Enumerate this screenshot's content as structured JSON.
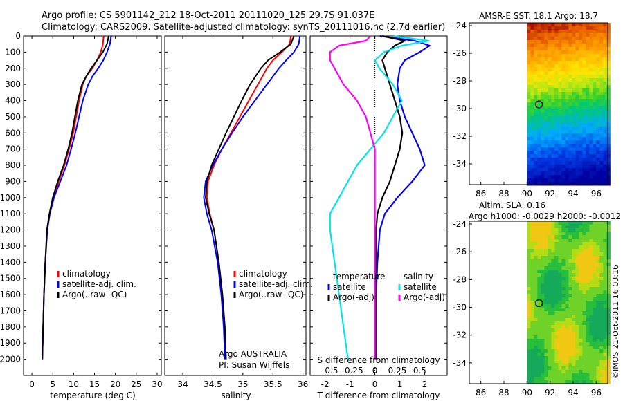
{
  "header": {
    "line1": "Argo profile: CS 5901142_212 18-Oct-2011 20111020_125 29.7S 91.037E",
    "line2": "Climatology: CARS2009. Satellite-adjusted climatology: synTS_20111016.nc (2.7d earlier)"
  },
  "colors": {
    "climatology": "#ff0000",
    "satellite": "#0000ff",
    "argo": "#000000",
    "sat_sal": "#00e5e5",
    "argo_sal": "#ff00ff"
  },
  "chart_data": [
    {
      "type": "line",
      "xlabel": "temperature (deg C)",
      "ylabel": "",
      "xlim": [
        -2,
        31
      ],
      "ylim": [
        2100,
        0
      ],
      "xticks": [
        "0",
        "5",
        "10",
        "15",
        "20",
        "25",
        "30"
      ],
      "yticks": [
        "0",
        "100",
        "200",
        "300",
        "400",
        "500",
        "600",
        "700",
        "800",
        "900",
        "1000",
        "1100",
        "1200",
        "1300",
        "1400",
        "1500",
        "1600",
        "1700",
        "1800",
        "1900",
        "2000"
      ],
      "legend": [
        "climatology",
        "satellite-adj. clim.",
        "Argo(..raw -QC)"
      ],
      "series": [
        {
          "name": "climatology",
          "color": "#ff0000",
          "depth": [
            0,
            50,
            100,
            150,
            200,
            250,
            300,
            400,
            500,
            600,
            700,
            800,
            900,
            1000,
            1100,
            1200,
            1400,
            1600,
            1800,
            2000
          ],
          "values": [
            17.2,
            17.0,
            16.5,
            15.6,
            14.5,
            13.0,
            12.2,
            11.3,
            10.6,
            9.9,
            8.9,
            7.8,
            6.4,
            5.1,
            4.2,
            3.6,
            3.2,
            2.9,
            2.7,
            2.5
          ]
        },
        {
          "name": "satellite-adj. clim.",
          "color": "#0000ff",
          "depth": [
            0,
            50,
            100,
            150,
            200,
            250,
            300,
            400,
            500,
            600,
            700,
            800,
            900,
            1000,
            1100,
            1200,
            1400,
            1600,
            1800,
            2000
          ],
          "values": [
            19.0,
            18.7,
            18.0,
            17.1,
            15.9,
            14.5,
            13.5,
            12.2,
            11.3,
            10.4,
            9.4,
            8.3,
            6.8,
            5.3,
            4.3,
            3.7,
            3.2,
            2.9,
            2.7,
            2.5
          ]
        },
        {
          "name": "Argo(..raw -QC)",
          "color": "#000000",
          "depth": [
            0,
            50,
            100,
            150,
            200,
            250,
            300,
            400,
            500,
            600,
            700,
            800,
            900,
            1000,
            1100,
            1200,
            1400,
            1600,
            1800,
            2000
          ],
          "values": [
            18.4,
            18.0,
            17.0,
            15.6,
            14.2,
            13.0,
            12.0,
            11.0,
            10.3,
            9.6,
            8.7,
            7.6,
            6.2,
            5.0,
            4.2,
            3.6,
            3.2,
            2.9,
            2.7,
            2.5
          ]
        }
      ]
    },
    {
      "type": "line",
      "xlabel": "salinity",
      "ylabel": "",
      "xlim": [
        33.7,
        36.05
      ],
      "ylim": [
        2100,
        0
      ],
      "xticks": [
        "34",
        "34.5",
        "35",
        "35.5",
        "36"
      ],
      "legend": [
        "climatology",
        "satellite-adj. clim.",
        "Argo(..raw -QC)"
      ],
      "annotation": [
        "Argo AUSTRALIA",
        "PI: Susan Wijffels"
      ],
      "series": [
        {
          "name": "climatology",
          "color": "#ff0000",
          "depth": [
            0,
            50,
            100,
            150,
            200,
            300,
            400,
            500,
            600,
            700,
            800,
            900,
            1000,
            1100,
            1200,
            1400,
            1600,
            1800,
            2000
          ],
          "values": [
            35.8,
            35.78,
            35.65,
            35.5,
            35.4,
            35.25,
            35.1,
            34.95,
            34.8,
            34.65,
            34.52,
            34.42,
            34.4,
            34.45,
            34.52,
            34.6,
            34.66,
            34.7,
            34.72
          ]
        },
        {
          "name": "satellite-adj. clim.",
          "color": "#0000ff",
          "depth": [
            0,
            50,
            100,
            150,
            200,
            300,
            400,
            500,
            600,
            700,
            800,
            900,
            1000,
            1100,
            1200,
            1400,
            1600,
            1800,
            2000
          ],
          "values": [
            35.95,
            35.93,
            35.85,
            35.72,
            35.6,
            35.4,
            35.2,
            35.0,
            34.82,
            34.65,
            34.5,
            34.38,
            34.35,
            34.4,
            34.48,
            34.58,
            34.64,
            34.68,
            34.7
          ]
        },
        {
          "name": "Argo(..raw -QC)",
          "color": "#000000",
          "depth": [
            0,
            50,
            100,
            150,
            200,
            300,
            400,
            500,
            600,
            700,
            800,
            900,
            1000,
            1100,
            1200,
            1400,
            1600,
            1800,
            2000
          ],
          "values": [
            35.85,
            35.8,
            35.62,
            35.42,
            35.3,
            35.12,
            34.98,
            34.85,
            34.72,
            34.6,
            34.48,
            34.4,
            34.38,
            34.44,
            34.52,
            34.6,
            34.66,
            34.7,
            34.72
          ]
        }
      ]
    },
    {
      "type": "line",
      "xlabel": "T difference from climatology",
      "top_label": "S difference from climatology",
      "xlim": [
        -2.6,
        2.9
      ],
      "ylim": [
        2100,
        0
      ],
      "xticks": [
        "-2",
        "-1",
        "0",
        "1",
        "2"
      ],
      "sticks": [
        "-0.5",
        "-0.25",
        "0",
        "0.25",
        "0.5"
      ],
      "legend_titles": [
        "temperature",
        "salinity"
      ],
      "legend": [
        "satellite",
        "Argo(-adj)",
        "satellite",
        "Argo(-adj)"
      ],
      "series": [
        {
          "name": "satellite",
          "color": "#0000ff",
          "depth": [
            0,
            30,
            60,
            100,
            150,
            200,
            300,
            400,
            500,
            600,
            700,
            800,
            900,
            1000,
            1100,
            1200,
            1400,
            1600,
            1800,
            2000
          ],
          "values": [
            0.2,
            1.6,
            2.2,
            1.8,
            1.2,
            1.0,
            0.9,
            1.0,
            1.2,
            1.5,
            1.8,
            2.0,
            1.5,
            0.9,
            0.4,
            0.2,
            0.1,
            0.05,
            0.05,
            0.05
          ]
        },
        {
          "name": "Argo(-adj)",
          "color": "#000000",
          "depth": [
            0,
            30,
            60,
            100,
            150,
            200,
            300,
            400,
            500,
            600,
            700,
            800,
            900,
            1000,
            1100,
            1200,
            1400,
            1600,
            1800,
            2000
          ],
          "values": [
            0.3,
            1.2,
            0.8,
            0.5,
            0.3,
            0.4,
            0.6,
            0.8,
            1.0,
            1.1,
            1.0,
            0.8,
            0.6,
            0.3,
            0.1,
            0.05,
            0.05,
            0.05,
            0.05,
            0.05
          ]
        },
        {
          "name": "satellite",
          "color": "#00e5e5",
          "depth": [
            0,
            30,
            60,
            100,
            150,
            200,
            300,
            400,
            500,
            600,
            700,
            800,
            900,
            1000,
            1100,
            1200,
            1400,
            1600,
            1800,
            2000
          ],
          "values": [
            0.2,
            0.6,
            0.3,
            0.1,
            0.0,
            0.05,
            0.2,
            0.3,
            0.2,
            0.1,
            -0.05,
            -0.2,
            -0.3,
            -0.4,
            -0.5,
            -0.5,
            -0.45,
            -0.4,
            -0.35,
            -0.3
          ]
        },
        {
          "name": "Argo(-adj)",
          "color": "#ff00ff",
          "depth": [
            0,
            30,
            60,
            100,
            150,
            200,
            300,
            400,
            500,
            600,
            700,
            800,
            900,
            1000,
            1100,
            1200,
            1400,
            1600,
            1800,
            2000
          ],
          "values": [
            -0.05,
            -0.1,
            -0.4,
            -0.5,
            -0.5,
            -0.45,
            -0.35,
            -0.2,
            -0.1,
            -0.05,
            0.0,
            0.0,
            0.0,
            0.0,
            0.0,
            0.0,
            0.0,
            0.0,
            0.0,
            0.0
          ]
        }
      ]
    },
    {
      "type": "heatmap",
      "title": "AMSR-E SST: 18.1  Argo: 18.7",
      "xlim": [
        85,
        97
      ],
      "ylim": [
        -35.5,
        -23.8
      ],
      "xticks": [
        "86",
        "88",
        "90",
        "92",
        "94",
        "96"
      ],
      "yticks": [
        "-24",
        "-26",
        "-28",
        "-30",
        "-32",
        "-34"
      ],
      "marker": {
        "lon": 91.04,
        "lat": -29.7
      }
    },
    {
      "type": "heatmap",
      "title": "Altim. SLA: 0.16",
      "subtitle": "Argo h1000: -0.0029 h2000: -0.0012",
      "xlim": [
        85,
        97
      ],
      "ylim": [
        -35.5,
        -23.8
      ],
      "xticks": [
        "86",
        "88",
        "90",
        "92",
        "94",
        "96"
      ],
      "yticks": [
        "-24",
        "-26",
        "-28",
        "-30",
        "-32",
        "-34"
      ],
      "marker": {
        "lon": 91.04,
        "lat": -29.7
      }
    }
  ],
  "footer": {
    "credit": "©IMOS 21-Oct-2011 16:03:16"
  }
}
